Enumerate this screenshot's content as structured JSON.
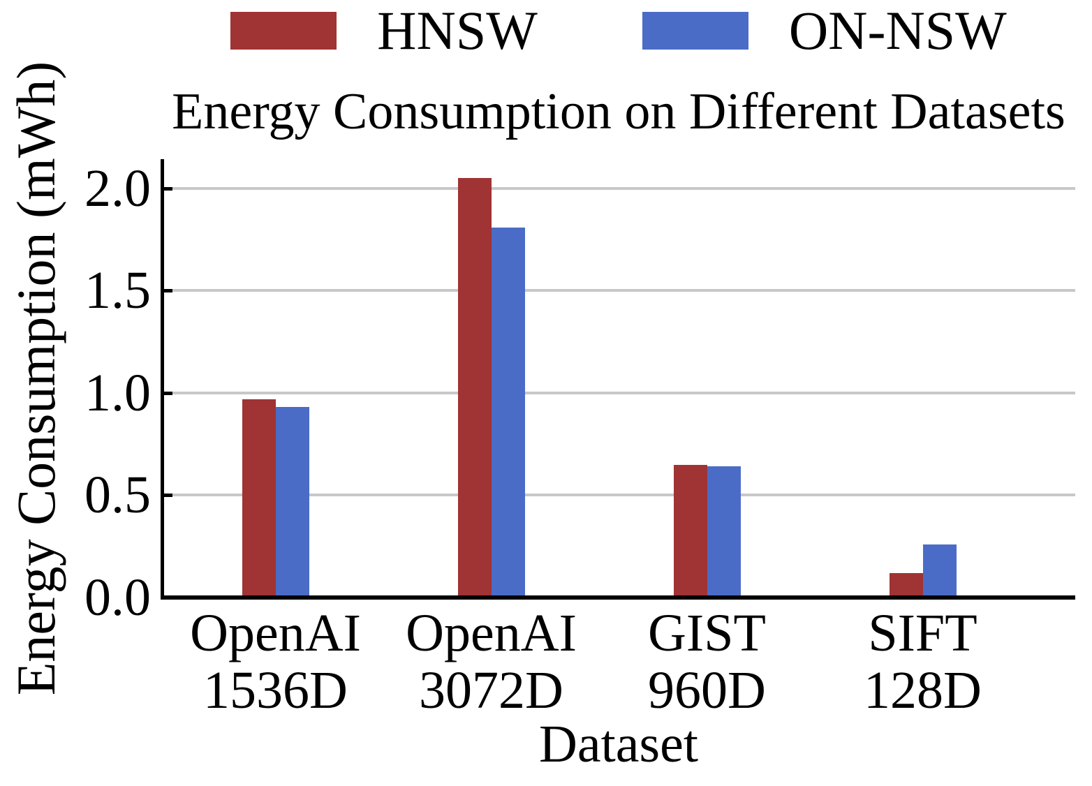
{
  "figure": {
    "background": "#FFFFFF"
  },
  "chart_data": {
    "type": "bar",
    "title": "Energy Consumption on Different Datasets",
    "xlabel": "Dataset",
    "ylabel": "Energy Consumption (mWh)",
    "categories": [
      "OpenAI\n1536D",
      "OpenAI\n3072D",
      "GIST\n960D",
      "SIFT\n128D"
    ],
    "series": [
      {
        "name": "HNSW",
        "color": "#A03333",
        "values": [
          0.97,
          2.05,
          0.65,
          0.12
        ]
      },
      {
        "name": "ON-NSW",
        "color": "#4B6CC6",
        "values": [
          0.93,
          1.81,
          0.64,
          0.26
        ]
      }
    ],
    "yticks": [
      0.0,
      0.5,
      1.0,
      1.5,
      2.0
    ],
    "ytick_labels": [
      "0.0",
      "0.5",
      "1.0",
      "1.5",
      "2.0"
    ],
    "ylim": [
      0,
      2.143
    ],
    "grid": "horizontal-gridlines-only",
    "legend_position": "top-center",
    "colors": {
      "gridline": "#C8C8C8",
      "axis": "#000000",
      "text": "#000000"
    }
  }
}
